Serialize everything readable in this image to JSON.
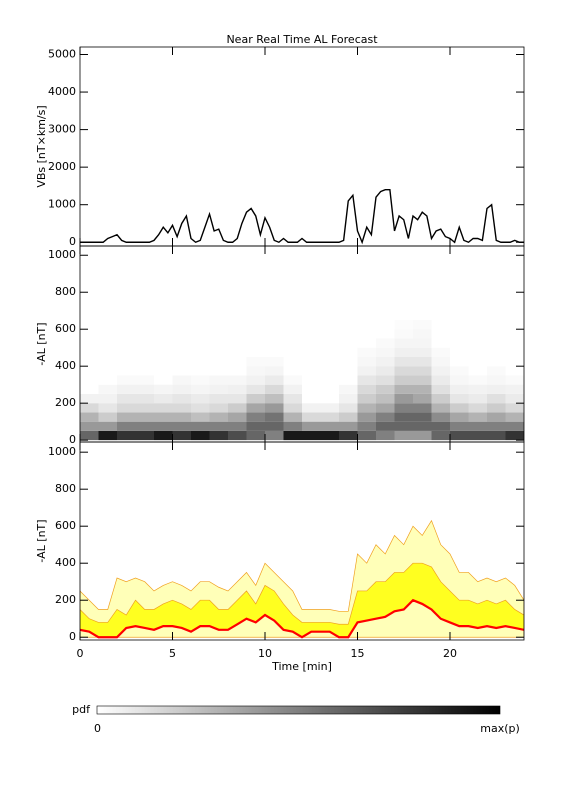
{
  "chart_data": [
    {
      "type": "line",
      "title": "Near Real Time AL Forecast",
      "ylabel": "VBs [nT×km/s]",
      "color": "#000000",
      "xlim": [
        0,
        24
      ],
      "xticks": [
        0,
        5,
        10,
        15,
        20
      ],
      "ylim": [
        -100,
        5200
      ],
      "yticks": [
        0,
        1000,
        2000,
        3000,
        4000,
        5000
      ],
      "x": [
        0,
        0.25,
        0.5,
        0.75,
        1,
        1.25,
        1.5,
        1.75,
        2,
        2.25,
        2.5,
        2.75,
        3,
        3.25,
        3.5,
        3.75,
        4,
        4.25,
        4.5,
        4.75,
        5,
        5.25,
        5.5,
        5.75,
        6,
        6.25,
        6.5,
        6.75,
        7,
        7.25,
        7.5,
        7.75,
        8,
        8.25,
        8.5,
        8.75,
        9,
        9.25,
        9.5,
        9.75,
        10,
        10.25,
        10.5,
        10.75,
        11,
        11.25,
        11.5,
        11.75,
        12,
        12.25,
        12.5,
        12.75,
        13,
        13.25,
        13.5,
        13.75,
        14,
        14.25,
        14.5,
        14.75,
        15,
        15.25,
        15.5,
        15.75,
        16,
        16.25,
        16.5,
        16.75,
        17,
        17.25,
        17.5,
        17.75,
        18,
        18.25,
        18.5,
        18.75,
        19,
        19.25,
        19.5,
        19.75,
        20,
        20.25,
        20.5,
        20.75,
        21,
        21.25,
        21.5,
        21.75,
        22,
        22.25,
        22.5,
        22.75,
        23,
        23.25,
        23.5,
        23.75,
        24
      ],
      "values": [
        0,
        0,
        0,
        0,
        0,
        0,
        100,
        150,
        200,
        50,
        0,
        0,
        0,
        0,
        0,
        0,
        50,
        200,
        400,
        250,
        450,
        150,
        500,
        700,
        100,
        0,
        50,
        400,
        750,
        300,
        350,
        50,
        0,
        0,
        100,
        500,
        800,
        900,
        700,
        200,
        650,
        400,
        50,
        0,
        100,
        0,
        0,
        0,
        100,
        0,
        0,
        0,
        0,
        0,
        0,
        0,
        0,
        50,
        1100,
        1250,
        300,
        0,
        400,
        200,
        1200,
        1350,
        1400,
        1400,
        300,
        700,
        600,
        100,
        700,
        600,
        800,
        700,
        100,
        300,
        350,
        150,
        100,
        0,
        400,
        50,
        0,
        100,
        100,
        50,
        900,
        1000,
        50,
        0,
        0,
        0,
        50,
        0,
        0
      ]
    },
    {
      "type": "heatmap",
      "ylabel": "-AL [nT]",
      "xlim": [
        0,
        24
      ],
      "xticks": [
        0,
        5,
        10,
        15,
        20
      ],
      "ylim": [
        -10,
        1050
      ],
      "yticks": [
        0,
        200,
        400,
        600,
        800,
        1000
      ],
      "xbins": [
        0,
        1,
        2,
        3,
        4,
        5,
        6,
        7,
        8,
        9,
        10,
        11,
        12,
        13,
        14,
        15,
        16,
        17,
        18,
        19,
        20,
        21,
        22,
        23,
        24
      ],
      "ybins": [
        0,
        50,
        100,
        150,
        200,
        250,
        300,
        350,
        400,
        450,
        500,
        550,
        600,
        650
      ],
      "z": [
        [
          0.6,
          0.4,
          0.3,
          0.15,
          0.05,
          0,
          0,
          0,
          0,
          0,
          0,
          0,
          0
        ],
        [
          0.9,
          0.4,
          0.2,
          0.1,
          0.05,
          0.03,
          0,
          0,
          0,
          0,
          0,
          0,
          0
        ],
        [
          0.8,
          0.5,
          0.3,
          0.15,
          0.1,
          0.05,
          0.02,
          0,
          0,
          0,
          0,
          0,
          0
        ],
        [
          0.8,
          0.5,
          0.3,
          0.15,
          0.1,
          0.05,
          0.02,
          0,
          0,
          0,
          0,
          0,
          0
        ],
        [
          0.9,
          0.5,
          0.3,
          0.15,
          0.08,
          0.04,
          0,
          0,
          0,
          0,
          0,
          0,
          0
        ],
        [
          0.8,
          0.5,
          0.3,
          0.15,
          0.1,
          0.05,
          0.03,
          0,
          0,
          0,
          0,
          0,
          0
        ],
        [
          0.9,
          0.5,
          0.25,
          0.12,
          0.08,
          0.04,
          0.02,
          0,
          0,
          0,
          0,
          0,
          0
        ],
        [
          0.8,
          0.5,
          0.3,
          0.15,
          0.1,
          0.05,
          0.03,
          0,
          0,
          0,
          0,
          0,
          0
        ],
        [
          0.7,
          0.5,
          0.35,
          0.2,
          0.1,
          0.06,
          0.03,
          0,
          0,
          0,
          0,
          0,
          0
        ],
        [
          0.6,
          0.6,
          0.5,
          0.35,
          0.2,
          0.1,
          0.05,
          0.03,
          0.02,
          0,
          0,
          0,
          0
        ],
        [
          0.5,
          0.6,
          0.55,
          0.4,
          0.25,
          0.15,
          0.08,
          0.04,
          0.02,
          0,
          0,
          0,
          0
        ],
        [
          0.9,
          0.5,
          0.3,
          0.15,
          0.1,
          0.05,
          0.02,
          0,
          0,
          0,
          0,
          0,
          0
        ],
        [
          0.9,
          0.4,
          0.15,
          0.05,
          0,
          0,
          0,
          0,
          0,
          0,
          0,
          0,
          0
        ],
        [
          0.9,
          0.4,
          0.15,
          0.05,
          0,
          0,
          0,
          0,
          0,
          0,
          0,
          0,
          0
        ],
        [
          0.8,
          0.4,
          0.2,
          0.1,
          0.05,
          0.03,
          0,
          0,
          0,
          0,
          0,
          0,
          0
        ],
        [
          0.6,
          0.5,
          0.4,
          0.3,
          0.2,
          0.15,
          0.1,
          0.05,
          0.03,
          0.02,
          0,
          0,
          0
        ],
        [
          0.5,
          0.6,
          0.5,
          0.35,
          0.25,
          0.2,
          0.12,
          0.08,
          0.05,
          0.03,
          0.02,
          0,
          0
        ],
        [
          0.4,
          0.6,
          0.6,
          0.5,
          0.4,
          0.3,
          0.2,
          0.15,
          0.1,
          0.06,
          0.04,
          0.02,
          0.01
        ],
        [
          0.4,
          0.6,
          0.6,
          0.5,
          0.35,
          0.3,
          0.2,
          0.15,
          0.1,
          0.06,
          0.04,
          0.03,
          0.02
        ],
        [
          0.6,
          0.6,
          0.45,
          0.3,
          0.2,
          0.12,
          0.08,
          0.05,
          0.03,
          0.02,
          0,
          0,
          0
        ],
        [
          0.7,
          0.5,
          0.35,
          0.2,
          0.1,
          0.06,
          0.03,
          0.02,
          0,
          0,
          0,
          0,
          0
        ],
        [
          0.7,
          0.5,
          0.3,
          0.15,
          0.08,
          0.05,
          0.02,
          0,
          0,
          0,
          0,
          0,
          0
        ],
        [
          0.7,
          0.5,
          0.35,
          0.2,
          0.12,
          0.06,
          0.03,
          0.02,
          0,
          0,
          0,
          0,
          0
        ],
        [
          0.8,
          0.5,
          0.3,
          0.15,
          0.08,
          0.05,
          0.02,
          0,
          0,
          0,
          0,
          0,
          0
        ]
      ],
      "colorbar": {
        "label": "pdf",
        "min_label": "0",
        "max_label": "max(p)"
      }
    },
    {
      "type": "band",
      "ylabel": "-AL [nT]",
      "xlabel": "Time [min]",
      "xlim": [
        0,
        24
      ],
      "xticks": [
        0,
        5,
        10,
        15,
        20
      ],
      "ylim": [
        -15,
        1055
      ],
      "yticks": [
        0,
        200,
        400,
        600,
        800,
        1000
      ],
      "x": [
        0,
        0.5,
        1,
        1.5,
        2,
        2.5,
        3,
        3.5,
        4,
        4.5,
        5,
        5.5,
        6,
        6.5,
        7,
        7.5,
        8,
        8.5,
        9,
        9.5,
        10,
        10.5,
        11,
        11.5,
        12,
        12.5,
        13,
        13.5,
        14,
        14.5,
        15,
        15.5,
        16,
        16.5,
        17,
        17.5,
        18,
        18.5,
        19,
        19.5,
        20,
        20.5,
        21,
        21.5,
        22,
        22.5,
        23,
        23.5,
        24
      ],
      "outer": {
        "color": "#ffffb8",
        "edge": "#f0a020",
        "upper": [
          250,
          200,
          150,
          150,
          320,
          300,
          320,
          300,
          250,
          280,
          300,
          280,
          250,
          300,
          300,
          270,
          250,
          300,
          350,
          280,
          400,
          350,
          300,
          250,
          150,
          150,
          150,
          150,
          140,
          140,
          450,
          400,
          500,
          450,
          550,
          500,
          600,
          550,
          630,
          500,
          450,
          350,
          350,
          300,
          320,
          300,
          320,
          280,
          200
        ]
      },
      "inner": {
        "color": "#ffff20",
        "edge": "#f0a020",
        "upper": [
          150,
          100,
          80,
          80,
          150,
          120,
          200,
          150,
          150,
          180,
          200,
          180,
          150,
          200,
          200,
          150,
          150,
          200,
          250,
          180,
          280,
          250,
          180,
          120,
          80,
          80,
          80,
          80,
          70,
          70,
          250,
          250,
          300,
          300,
          350,
          350,
          400,
          400,
          380,
          300,
          250,
          200,
          200,
          180,
          200,
          180,
          200,
          150,
          120
        ]
      },
      "median": {
        "color": "#ff0000",
        "values": [
          40,
          30,
          0,
          0,
          0,
          50,
          60,
          50,
          40,
          60,
          60,
          50,
          30,
          60,
          60,
          40,
          40,
          70,
          100,
          80,
          120,
          90,
          40,
          30,
          0,
          30,
          30,
          30,
          0,
          0,
          80,
          90,
          100,
          110,
          140,
          150,
          200,
          180,
          150,
          100,
          80,
          60,
          60,
          50,
          60,
          50,
          60,
          50,
          40
        ]
      }
    }
  ]
}
